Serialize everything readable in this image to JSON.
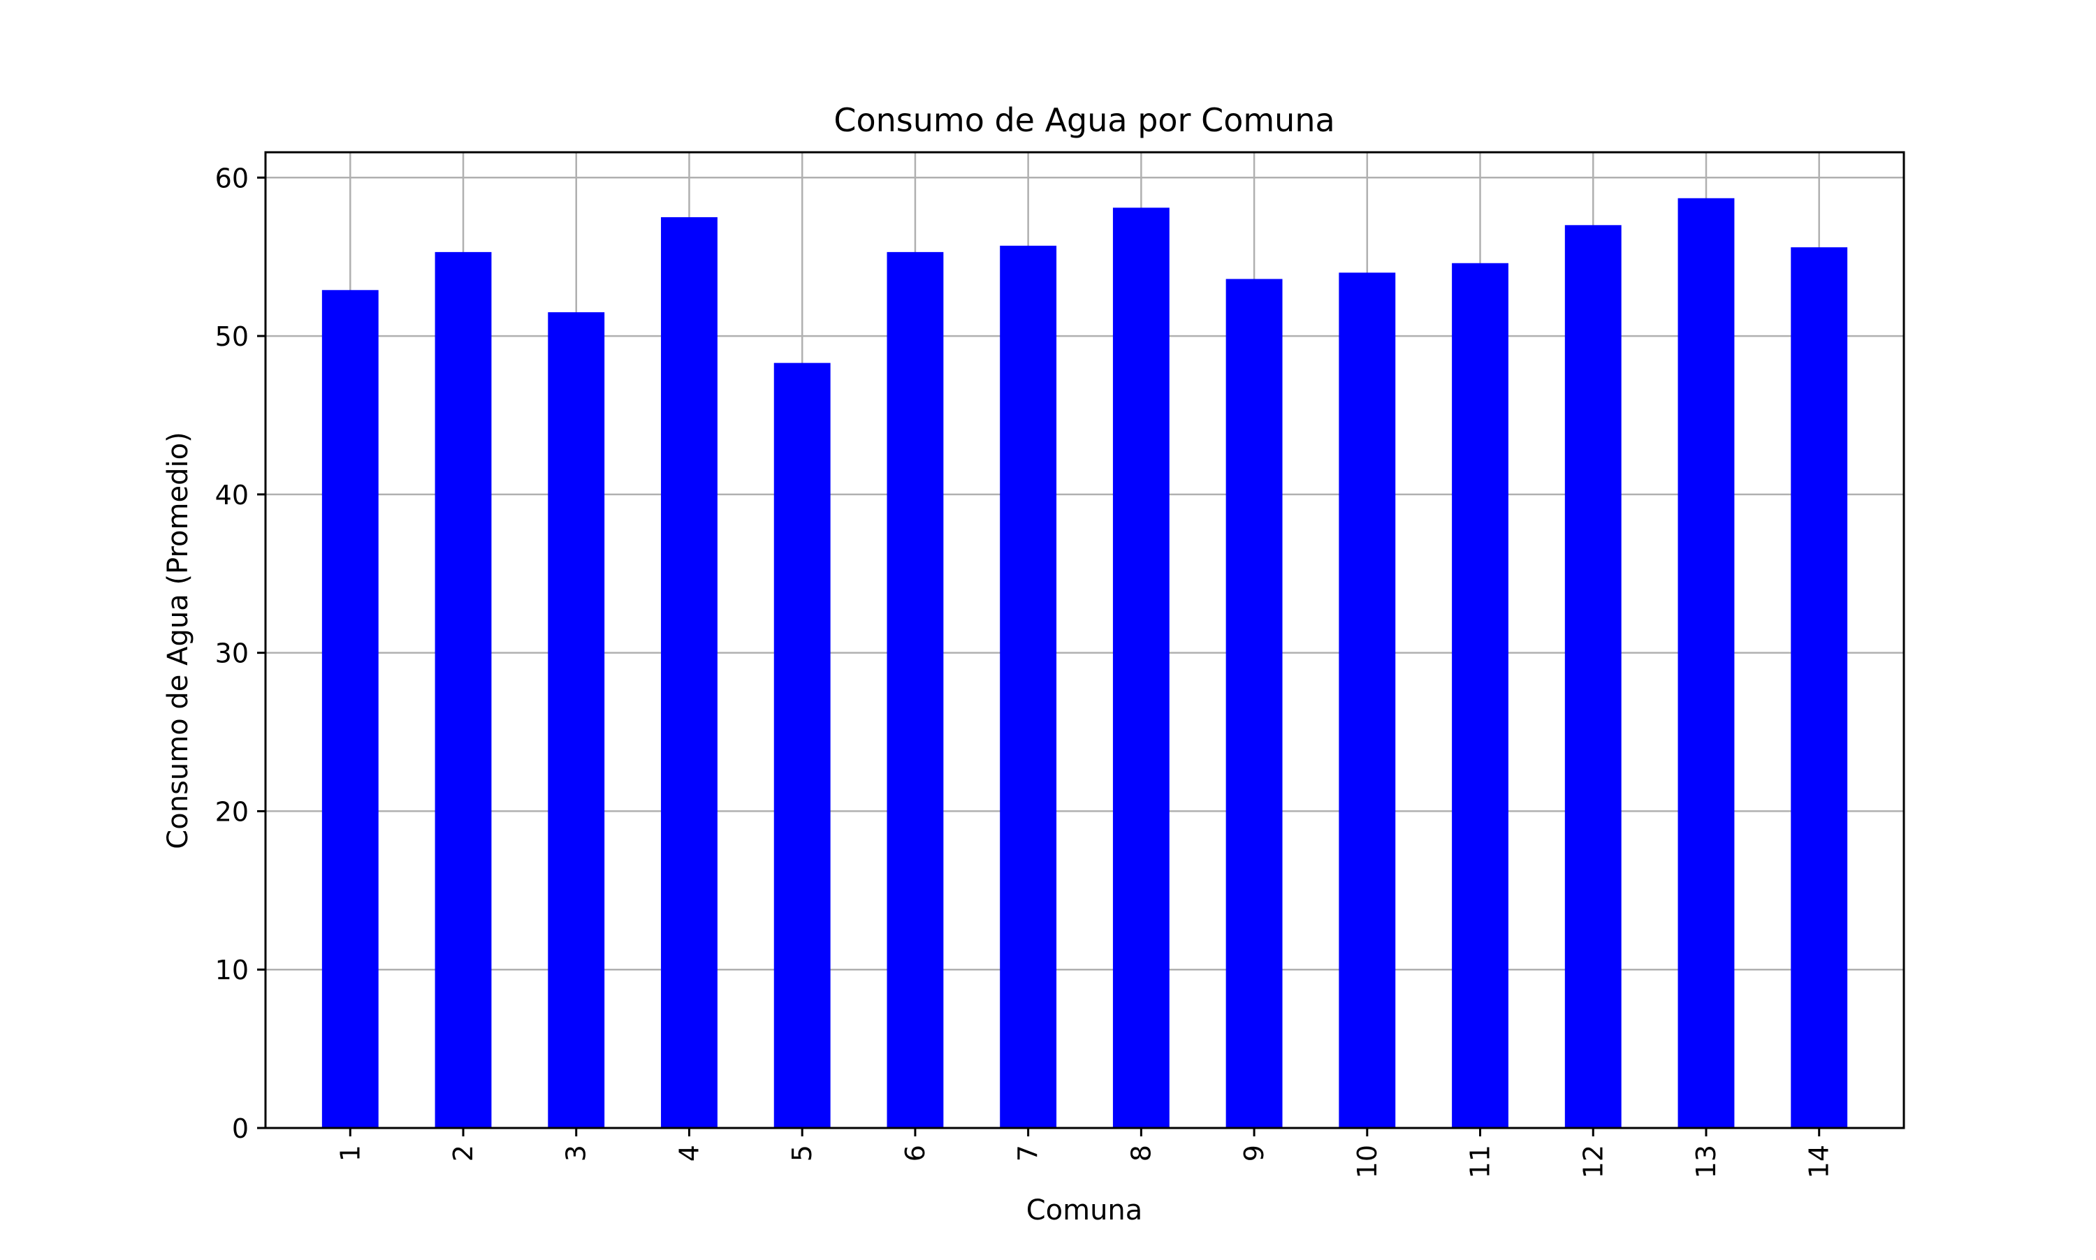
{
  "colors": {
    "bar": "#0000ff",
    "grid": "#b0b0b0",
    "axis": "#000000",
    "background": "#ffffff"
  },
  "chart_data": {
    "type": "bar",
    "title": "Consumo de Agua por Comuna",
    "xlabel": "Comuna",
    "ylabel": "Consumo de Agua (Promedio)",
    "categories": [
      "1",
      "2",
      "3",
      "4",
      "5",
      "6",
      "7",
      "8",
      "9",
      "10",
      "11",
      "12",
      "13",
      "14"
    ],
    "values": [
      52.9,
      55.3,
      51.5,
      57.5,
      48.3,
      55.3,
      55.7,
      58.1,
      53.6,
      54.0,
      54.6,
      57.0,
      58.7,
      55.6
    ],
    "ylim": [
      0,
      61.6
    ],
    "yticks": [
      0,
      10,
      20,
      30,
      40,
      50,
      60
    ],
    "grid": true,
    "xtick_rotation": "vertical",
    "legend": "none"
  }
}
